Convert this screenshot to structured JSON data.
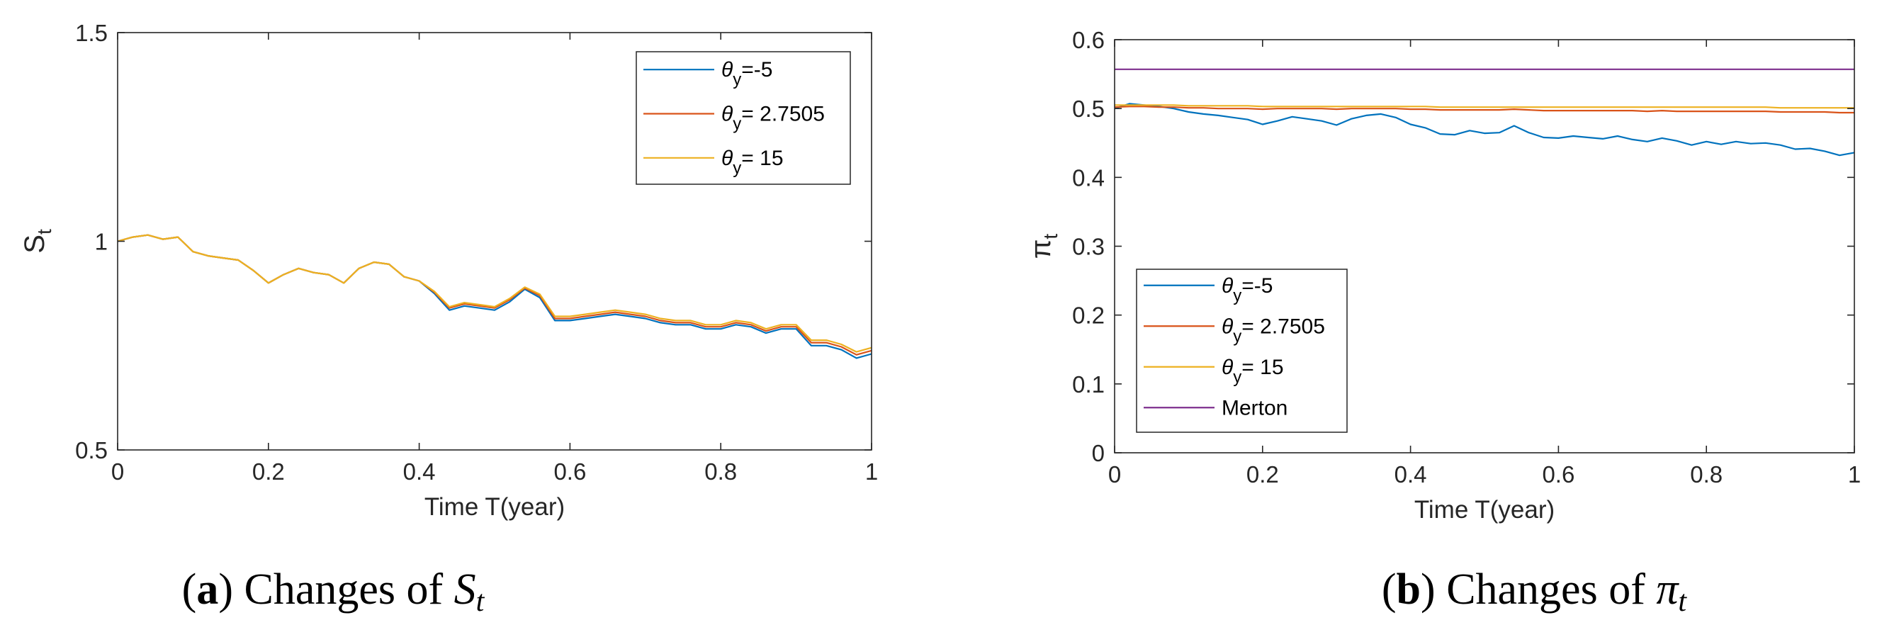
{
  "colors": {
    "blue": "#0072BD",
    "orange": "#D95319",
    "yellow": "#EDB120",
    "purple": "#7E2F8E",
    "axis": "#262626"
  },
  "captions": {
    "a": {
      "label": "a",
      "text": "Changes of",
      "symbol": "S",
      "sub": "t"
    },
    "b": {
      "label": "b",
      "text": "Changes of",
      "symbol": "π",
      "sub": "t"
    }
  },
  "chart_data": [
    {
      "type": "line",
      "id": "a",
      "title": "",
      "xlabel": "Time T(year)",
      "ylabel": {
        "base": "S",
        "sub": "t"
      },
      "xlim": [
        0,
        1
      ],
      "ylim": [
        0.5,
        1.5
      ],
      "xticks": [
        0,
        0.2,
        0.4,
        0.6,
        0.8,
        1
      ],
      "xtick_labels": [
        "0",
        "0.2",
        "0.4",
        "0.6",
        "0.8",
        "1"
      ],
      "yticks": [
        0.5,
        1,
        1.5
      ],
      "ytick_labels": [
        "0.5",
        "1",
        "1.5"
      ],
      "legend_position": "top-right",
      "x": [
        0,
        0.02,
        0.04,
        0.06,
        0.08,
        0.1,
        0.12,
        0.14,
        0.16,
        0.18,
        0.2,
        0.22,
        0.24,
        0.26,
        0.28,
        0.3,
        0.32,
        0.34,
        0.36,
        0.38,
        0.4,
        0.42,
        0.44,
        0.46,
        0.48,
        0.5,
        0.52,
        0.54,
        0.56,
        0.58,
        0.6,
        0.62,
        0.64,
        0.66,
        0.68,
        0.7,
        0.72,
        0.74,
        0.76,
        0.78,
        0.8,
        0.82,
        0.84,
        0.86,
        0.88,
        0.9,
        0.92,
        0.94,
        0.96,
        0.98,
        1.0
      ],
      "series": [
        {
          "name": "θ_y=-5",
          "legend_base": "θ",
          "legend_sub": "y",
          "legend_rest": "=-5",
          "color": "#0072BD",
          "values": [
            1.0,
            1.01,
            1.015,
            1.005,
            1.01,
            0.975,
            0.965,
            0.96,
            0.955,
            0.93,
            0.9,
            0.92,
            0.935,
            0.925,
            0.92,
            0.9,
            0.935,
            0.95,
            0.945,
            0.915,
            0.905,
            0.875,
            0.835,
            0.845,
            0.84,
            0.835,
            0.855,
            0.885,
            0.865,
            0.81,
            0.81,
            0.815,
            0.82,
            0.825,
            0.82,
            0.815,
            0.805,
            0.8,
            0.8,
            0.79,
            0.79,
            0.8,
            0.795,
            0.78,
            0.79,
            0.79,
            0.75,
            0.75,
            0.74,
            0.72,
            0.73
          ]
        },
        {
          "name": "θ_y= 2.7505",
          "legend_base": "θ",
          "legend_sub": "y",
          "legend_rest": "= 2.7505",
          "color": "#D95319",
          "values": [
            1.0,
            1.01,
            1.015,
            1.005,
            1.01,
            0.975,
            0.965,
            0.96,
            0.955,
            0.93,
            0.9,
            0.92,
            0.935,
            0.925,
            0.92,
            0.9,
            0.935,
            0.95,
            0.945,
            0.915,
            0.905,
            0.878,
            0.84,
            0.85,
            0.845,
            0.84,
            0.86,
            0.888,
            0.87,
            0.815,
            0.815,
            0.82,
            0.825,
            0.83,
            0.825,
            0.82,
            0.81,
            0.805,
            0.805,
            0.795,
            0.795,
            0.805,
            0.8,
            0.785,
            0.795,
            0.795,
            0.757,
            0.757,
            0.747,
            0.728,
            0.738
          ]
        },
        {
          "name": "θ_y= 15",
          "legend_base": "θ",
          "legend_sub": "y",
          "legend_rest": "= 15",
          "color": "#EDB120",
          "values": [
            1.0,
            1.01,
            1.015,
            1.005,
            1.01,
            0.975,
            0.965,
            0.96,
            0.955,
            0.93,
            0.9,
            0.92,
            0.935,
            0.925,
            0.92,
            0.9,
            0.935,
            0.95,
            0.945,
            0.915,
            0.905,
            0.88,
            0.843,
            0.853,
            0.848,
            0.843,
            0.863,
            0.89,
            0.873,
            0.82,
            0.82,
            0.825,
            0.83,
            0.835,
            0.83,
            0.825,
            0.815,
            0.81,
            0.81,
            0.8,
            0.8,
            0.81,
            0.805,
            0.79,
            0.8,
            0.8,
            0.763,
            0.763,
            0.753,
            0.735,
            0.745
          ]
        }
      ]
    },
    {
      "type": "line",
      "id": "b",
      "title": "",
      "xlabel": "Time T(year)",
      "ylabel": {
        "base": "π",
        "sub": "t"
      },
      "xlim": [
        0,
        1
      ],
      "ylim": [
        0,
        0.6
      ],
      "xticks": [
        0,
        0.2,
        0.4,
        0.6,
        0.8,
        1
      ],
      "xtick_labels": [
        "0",
        "0.2",
        "0.4",
        "0.6",
        "0.8",
        "1"
      ],
      "yticks": [
        0,
        0.1,
        0.2,
        0.3,
        0.4,
        0.5,
        0.6
      ],
      "ytick_labels": [
        "0",
        "0.1",
        "0.2",
        "0.3",
        "0.4",
        "0.5",
        "0.6"
      ],
      "legend_position": "bottom-left",
      "x": [
        0,
        0.02,
        0.04,
        0.06,
        0.08,
        0.1,
        0.12,
        0.14,
        0.16,
        0.18,
        0.2,
        0.22,
        0.24,
        0.26,
        0.28,
        0.3,
        0.32,
        0.34,
        0.36,
        0.38,
        0.4,
        0.42,
        0.44,
        0.46,
        0.48,
        0.5,
        0.52,
        0.54,
        0.56,
        0.58,
        0.6,
        0.62,
        0.64,
        0.66,
        0.68,
        0.7,
        0.72,
        0.74,
        0.76,
        0.78,
        0.8,
        0.82,
        0.84,
        0.86,
        0.88,
        0.9,
        0.92,
        0.94,
        0.96,
        0.98,
        1.0
      ],
      "series": [
        {
          "name": "θ_y=-5",
          "legend_base": "θ",
          "legend_sub": "y",
          "legend_rest": "=-5",
          "color": "#0072BD",
          "values": [
            0.5,
            0.507,
            0.505,
            0.503,
            0.5,
            0.495,
            0.492,
            0.49,
            0.487,
            0.484,
            0.477,
            0.482,
            0.488,
            0.485,
            0.482,
            0.476,
            0.485,
            0.49,
            0.492,
            0.487,
            0.477,
            0.472,
            0.463,
            0.462,
            0.468,
            0.464,
            0.465,
            0.475,
            0.465,
            0.458,
            0.457,
            0.46,
            0.458,
            0.456,
            0.46,
            0.455,
            0.452,
            0.457,
            0.453,
            0.447,
            0.452,
            0.448,
            0.452,
            0.449,
            0.45,
            0.447,
            0.441,
            0.442,
            0.438,
            0.432,
            0.436
          ]
        },
        {
          "name": "θ_y= 2.7505",
          "legend_base": "θ",
          "legend_sub": "y",
          "legend_rest": "= 2.7505",
          "color": "#D95319",
          "values": [
            0.502,
            0.503,
            0.503,
            0.502,
            0.502,
            0.501,
            0.501,
            0.5,
            0.5,
            0.5,
            0.499,
            0.5,
            0.5,
            0.5,
            0.5,
            0.499,
            0.5,
            0.5,
            0.5,
            0.5,
            0.499,
            0.499,
            0.498,
            0.498,
            0.498,
            0.498,
            0.498,
            0.499,
            0.498,
            0.497,
            0.497,
            0.497,
            0.497,
            0.497,
            0.497,
            0.497,
            0.496,
            0.497,
            0.496,
            0.496,
            0.496,
            0.496,
            0.496,
            0.496,
            0.496,
            0.495,
            0.495,
            0.495,
            0.495,
            0.494,
            0.494
          ]
        },
        {
          "name": "θ_y= 15",
          "legend_base": "θ",
          "legend_sub": "y",
          "legend_rest": "= 15",
          "color": "#EDB120",
          "values": [
            0.505,
            0.505,
            0.505,
            0.505,
            0.505,
            0.504,
            0.504,
            0.504,
            0.504,
            0.504,
            0.503,
            0.503,
            0.503,
            0.503,
            0.503,
            0.503,
            0.503,
            0.503,
            0.503,
            0.503,
            0.503,
            0.503,
            0.502,
            0.502,
            0.502,
            0.502,
            0.502,
            0.502,
            0.502,
            0.502,
            0.502,
            0.502,
            0.502,
            0.502,
            0.502,
            0.502,
            0.502,
            0.502,
            0.502,
            0.502,
            0.502,
            0.502,
            0.502,
            0.502,
            0.502,
            0.501,
            0.501,
            0.501,
            0.501,
            0.501,
            0.501
          ]
        },
        {
          "name": "Merton",
          "legend_base": "Merton",
          "legend_sub": "",
          "legend_rest": "",
          "color": "#7E2F8E",
          "values": [
            0.557,
            0.557,
            0.557,
            0.557,
            0.557,
            0.557,
            0.557,
            0.557,
            0.557,
            0.557,
            0.557,
            0.557,
            0.557,
            0.557,
            0.557,
            0.557,
            0.557,
            0.557,
            0.557,
            0.557,
            0.557,
            0.557,
            0.557,
            0.557,
            0.557,
            0.557,
            0.557,
            0.557,
            0.557,
            0.557,
            0.557,
            0.557,
            0.557,
            0.557,
            0.557,
            0.557,
            0.557,
            0.557,
            0.557,
            0.557,
            0.557,
            0.557,
            0.557,
            0.557,
            0.557,
            0.557,
            0.557,
            0.557,
            0.557,
            0.557,
            0.557
          ]
        }
      ]
    }
  ]
}
